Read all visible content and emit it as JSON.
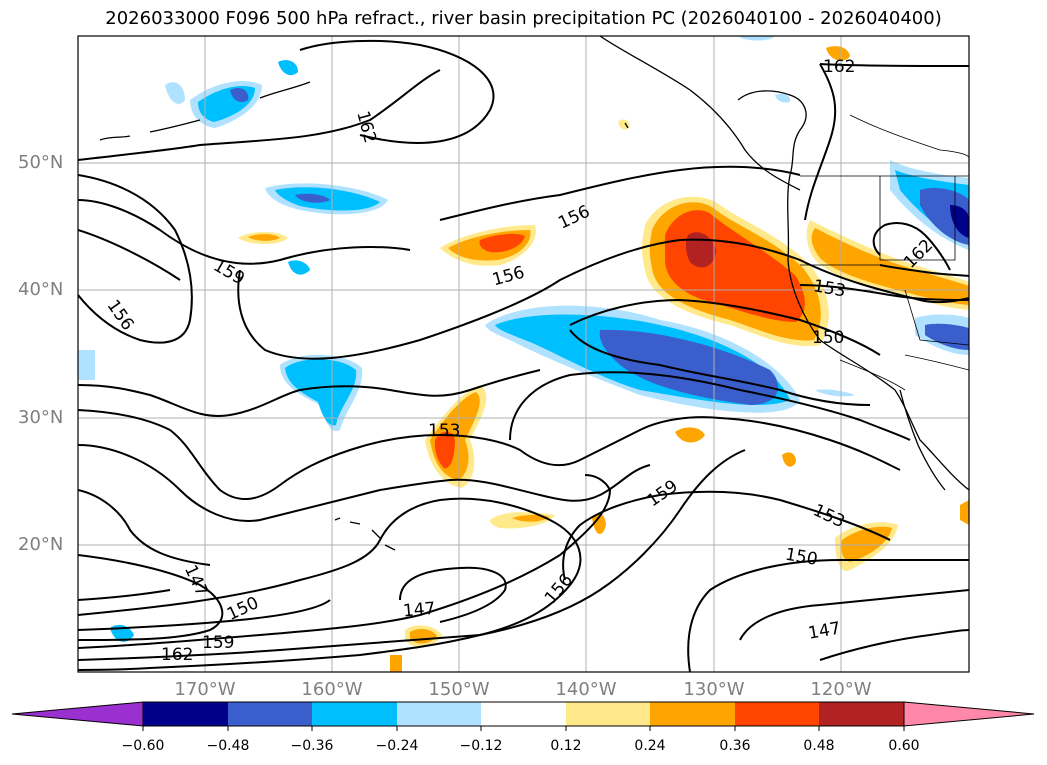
{
  "title": "2026033000 F096 500 hPa refract., river basin precipitation PC (2026040100 - 2026040400)",
  "latitude_labels": [
    "50°N",
    "40°N",
    "30°N",
    "20°N"
  ],
  "longitude_labels": [
    "170°W",
    "160°W",
    "150°W",
    "140°W",
    "130°W",
    "120°W"
  ],
  "colorbar": {
    "ticks": [
      "−0.60",
      "−0.48",
      "−0.36",
      "−0.24",
      "−0.12",
      "0.12",
      "0.24",
      "0.36",
      "0.48",
      "0.60"
    ],
    "colors": [
      "#9b30d0",
      "#00008b",
      "#3a5fcd",
      "#00bfff",
      "#b0e2ff",
      "#ffffff",
      "#ffe98a",
      "#ffa500",
      "#ff4500",
      "#b22222",
      "#ff88aa"
    ]
  },
  "contour_labels": [
    "162",
    "162",
    "156",
    "159",
    "156",
    "156",
    "153",
    "162",
    "153",
    "150",
    "159",
    "153",
    "153",
    "150",
    "156",
    "147",
    "147",
    "150",
    "147",
    "159",
    "162"
  ],
  "colors": {
    "land_fill": "#ffffff",
    "contour": "#000000",
    "grid": "#b0b0b0",
    "axis_label": "#808080"
  }
}
